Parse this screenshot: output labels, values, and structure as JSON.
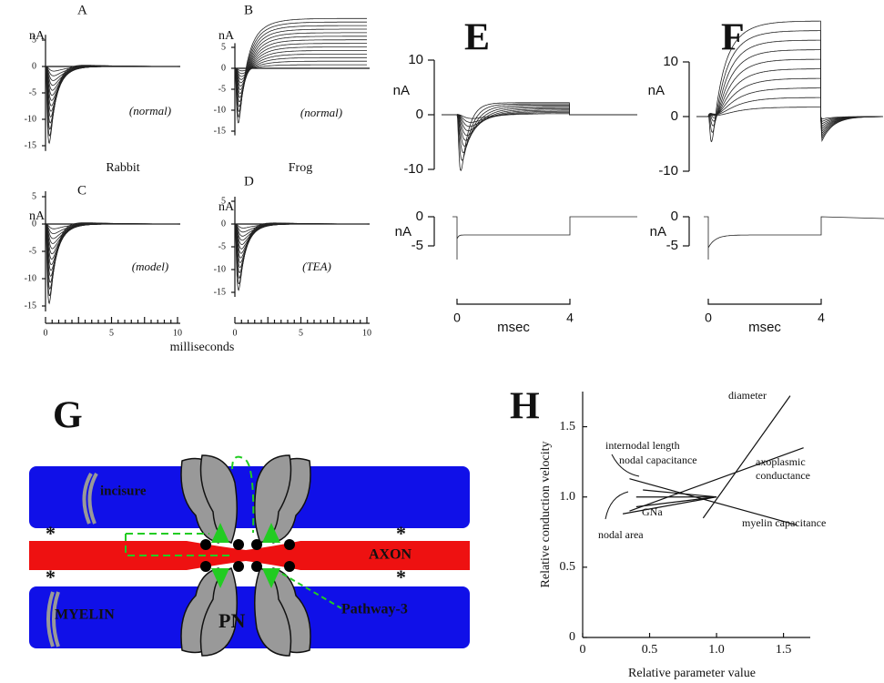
{
  "panels": {
    "a": {
      "label": "A",
      "unit": "nA",
      "yticks": [
        "5",
        "0",
        "-5",
        "-10",
        "-15"
      ],
      "note": "(normal)",
      "caption": "Rabbit"
    },
    "b": {
      "label": "B",
      "unit": "nA",
      "yticks": [
        "5",
        "0",
        "-5",
        "-10",
        "-15"
      ],
      "note": "(normal)",
      "caption": "Frog"
    },
    "c": {
      "label": "C",
      "unit": "nA",
      "yticks": [
        "5",
        "0",
        "-5",
        "-10",
        "-15"
      ],
      "note": "(model)"
    },
    "d": {
      "label": "D",
      "unit": "nA",
      "yticks": [
        "5",
        "0",
        "-5",
        "-10",
        "-15"
      ],
      "note": "(TEA)"
    },
    "time_axis": {
      "ticks": [
        "0",
        "5",
        "10"
      ],
      "label": "milliseconds"
    },
    "e": {
      "label": "E",
      "unit": "nA",
      "yticks": [
        "10",
        "0",
        "-10"
      ],
      "lower_unit": "nA",
      "lower_yticks": [
        "0",
        "-5"
      ],
      "time_ticks": [
        "0",
        "4"
      ],
      "time_label": "msec"
    },
    "f": {
      "label": "F",
      "unit": "nA",
      "yticks": [
        "10",
        "0",
        "-10"
      ],
      "lower_unit": "nA",
      "lower_yticks": [
        "0",
        "-5"
      ],
      "time_ticks": [
        "0",
        "4"
      ],
      "time_label": "msec"
    },
    "g": {
      "label": "G",
      "incisure": "incisure",
      "myelin": "MYELIN",
      "pn": "PN",
      "axon": "AXON",
      "pathway": "Pathway-3",
      "asterisk": "*"
    }
  },
  "panel_h": {
    "type": "line",
    "label": "H",
    "ylabel": "Relative conduction velocity",
    "xlabel": "Relative parameter value",
    "xlim": [
      0,
      1.7
    ],
    "ylim": [
      0,
      1.75
    ],
    "xticks": [
      0,
      0.5,
      {
        "value": 1,
        "label": "1.0"
      },
      1.5
    ],
    "yticks": [
      0,
      0.5,
      {
        "value": 1,
        "label": "1.0"
      },
      1.5
    ],
    "series": [
      {
        "name": "diameter",
        "x": [
          0.9,
          1.55
        ],
        "values": [
          0.85,
          1.72
        ]
      },
      {
        "name": "axoplasmic conductance",
        "x": [
          0.35,
          1.65
        ],
        "values": [
          0.9,
          1.35
        ]
      },
      {
        "name": "myelin capacitance",
        "x": [
          0.35,
          1.6
        ],
        "values": [
          1.13,
          0.8
        ]
      },
      {
        "name": "internodal length",
        "x": [
          0.4,
          1
        ],
        "values": [
          1.0,
          1.0
        ]
      },
      {
        "name": "nodal capacitance",
        "x": [
          0.45,
          1
        ],
        "values": [
          1.05,
          1.0
        ]
      },
      {
        "name": "GNa",
        "x": [
          0.4,
          1
        ],
        "values": [
          0.93,
          1.0
        ]
      },
      {
        "name": "nodal area",
        "x": [
          0.3,
          1
        ],
        "values": [
          0.88,
          1.0
        ]
      }
    ]
  }
}
